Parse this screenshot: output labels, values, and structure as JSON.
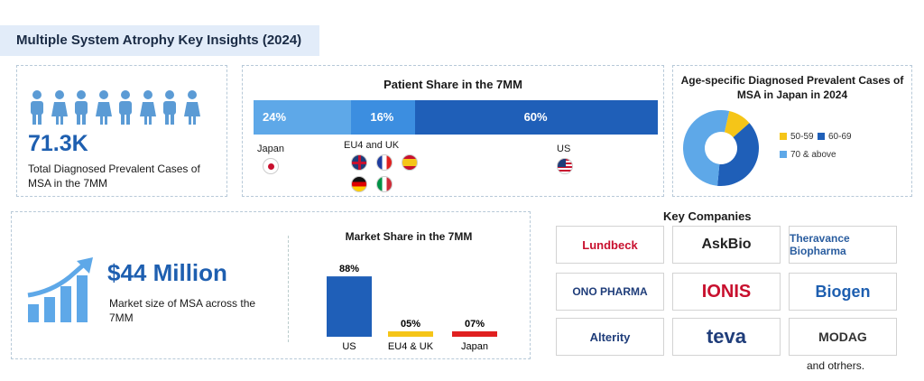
{
  "title": "Multiple System Atrophy Key Insights (2024)",
  "prevalence": {
    "value": "71.3K",
    "label": "Total Diagnosed Prevalent Cases of MSA in the 7MM",
    "icon": "people-icon",
    "color": "#5b9bd5"
  },
  "patient_share": {
    "title": "Patient Share in the 7MM",
    "segments": [
      {
        "label": "Japan",
        "value": 24,
        "text": "24%",
        "color": "#5ea8e8"
      },
      {
        "label": "EU4 and UK",
        "value": 16,
        "text": "16%",
        "color": "#3c8ee0"
      },
      {
        "label": "US",
        "value": 60,
        "text": "60%",
        "color": "#1f5fb8"
      }
    ],
    "flags": [
      "japan-flag",
      "uk-flag",
      "france-flag",
      "spain-flag",
      "germany-flag",
      "italy-flag",
      "us-flag"
    ]
  },
  "market": {
    "value": "$44 Million",
    "label": "Market size of MSA across the 7MM",
    "icon": "growth-chart-icon"
  },
  "age_chart_title": "Age-specific Diagnosed Prevalent Cases of MSA in Japan in 2024",
  "key_companies": {
    "title": "Key Companies",
    "logos": [
      {
        "name": "Lundbeck",
        "color": "#c8102e"
      },
      {
        "name": "AskBio",
        "color": "#222222"
      },
      {
        "name": "Theravance Biopharma",
        "color": "#2a5d9f"
      },
      {
        "name": "ONO PHARMA",
        "color": "#1f3d7a"
      },
      {
        "name": "IONIS",
        "color": "#c8102e"
      },
      {
        "name": "Biogen",
        "color": "#1e5fb0"
      },
      {
        "name": "Alterity",
        "color": "#1f3d7a"
      },
      {
        "name": "teva",
        "color": "#1f3d7a"
      },
      {
        "name": "MODAG",
        "color": "#333333"
      }
    ],
    "others": "and otrhers."
  },
  "chart_data": [
    {
      "type": "bar",
      "title": "Patient Share in the 7MM",
      "categories": [
        "Japan",
        "EU4 and UK",
        "US"
      ],
      "values": [
        24,
        16,
        60
      ],
      "unit": "%",
      "orientation": "stacked-horizontal"
    },
    {
      "type": "pie",
      "title": "Age-specific Diagnosed Prevalent Cases of MSA in Japan in 2024",
      "categories": [
        "50-59",
        "60-69",
        "70 & above"
      ],
      "values": [
        10,
        38,
        52
      ],
      "colors": [
        "#f5c518",
        "#1f5fb8",
        "#5ea8e8"
      ],
      "legend": "right"
    },
    {
      "type": "bar",
      "title": "Market Share in the 7MM",
      "categories": [
        "US",
        "EU4 & UK",
        "Japan"
      ],
      "values": [
        88,
        5,
        7
      ],
      "labels": [
        "88%",
        "05%",
        "07%"
      ],
      "colors": [
        "#1f5fb8",
        "#f5c518",
        "#e02020"
      ],
      "ylim": [
        0,
        100
      ]
    }
  ]
}
